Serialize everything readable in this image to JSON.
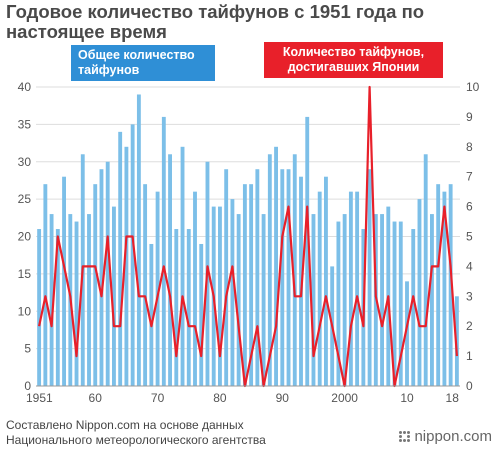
{
  "header": {
    "title": "Годовое количество тайфунов с 1951 года по настоящее время"
  },
  "callouts": {
    "total": "Общее количество тайфунов",
    "japan": "Количество тайфунов, достигавших Японии"
  },
  "footer": {
    "source_line1": "Составлено Nippon.com на основе данных",
    "source_line2": "Национального метеорологического агентства"
  },
  "brand": {
    "logo_text": "nippon.com"
  },
  "colors": {
    "bars": "#7cbfe8",
    "line": "#e8202a",
    "total_callout": "#2f8fd6",
    "japan_callout": "#e8202a",
    "grid": "#dddddd",
    "axis_text": "#555555"
  },
  "chart_data": {
    "type": "bar",
    "x_tick_labels": [
      "1951",
      "60",
      "70",
      "80",
      "90",
      "2000",
      "10",
      "18"
    ],
    "y_left_range": [
      0,
      40
    ],
    "y_left_ticks": [
      0,
      5,
      10,
      15,
      20,
      25,
      30,
      35,
      40
    ],
    "y_right_range": [
      0,
      10
    ],
    "y_right_ticks": [
      0,
      1,
      2,
      3,
      4,
      5,
      6,
      7,
      8,
      9,
      10
    ],
    "grid": true,
    "x": [
      1951,
      1952,
      1953,
      1954,
      1955,
      1956,
      1957,
      1958,
      1959,
      1960,
      1961,
      1962,
      1963,
      1964,
      1965,
      1966,
      1967,
      1968,
      1969,
      1970,
      1971,
      1972,
      1973,
      1974,
      1975,
      1976,
      1977,
      1978,
      1979,
      1980,
      1981,
      1982,
      1983,
      1984,
      1985,
      1986,
      1987,
      1988,
      1989,
      1990,
      1991,
      1992,
      1993,
      1994,
      1995,
      1996,
      1997,
      1998,
      1999,
      2000,
      2001,
      2002,
      2003,
      2004,
      2005,
      2006,
      2007,
      2008,
      2009,
      2010,
      2011,
      2012,
      2013,
      2014,
      2015,
      2016,
      2017,
      2018
    ],
    "series": [
      {
        "name": "Общее количество тайфунов",
        "type": "bar",
        "axis": "left",
        "values": [
          21,
          27,
          23,
          21,
          28,
          23,
          22,
          31,
          23,
          27,
          29,
          30,
          24,
          34,
          32,
          35,
          39,
          27,
          19,
          26,
          36,
          31,
          21,
          32,
          21,
          26,
          19,
          30,
          24,
          24,
          29,
          25,
          23,
          27,
          27,
          29,
          23,
          31,
          32,
          29,
          29,
          31,
          28,
          36,
          23,
          26,
          28,
          16,
          22,
          23,
          26,
          26,
          21,
          29,
          23,
          23,
          24,
          22,
          22,
          14,
          21,
          25,
          31,
          23,
          27,
          26,
          27,
          12
        ]
      },
      {
        "name": "Количество тайфунов, достигавших Японии",
        "type": "line",
        "axis": "right",
        "values": [
          2,
          3,
          2,
          5,
          4,
          3,
          1,
          4,
          4,
          4,
          3,
          5,
          2,
          2,
          5,
          5,
          3,
          3,
          2,
          3,
          4,
          3,
          1,
          3,
          2,
          2,
          1,
          4,
          3,
          1,
          3,
          4,
          2,
          0,
          1,
          2,
          0,
          1,
          2,
          5,
          6,
          3,
          3,
          6,
          1,
          2,
          3,
          2,
          1,
          0,
          2,
          3,
          2,
          10,
          3,
          2,
          3,
          0,
          1,
          2,
          3,
          2,
          2,
          4,
          4,
          6,
          4,
          1
        ]
      }
    ]
  }
}
